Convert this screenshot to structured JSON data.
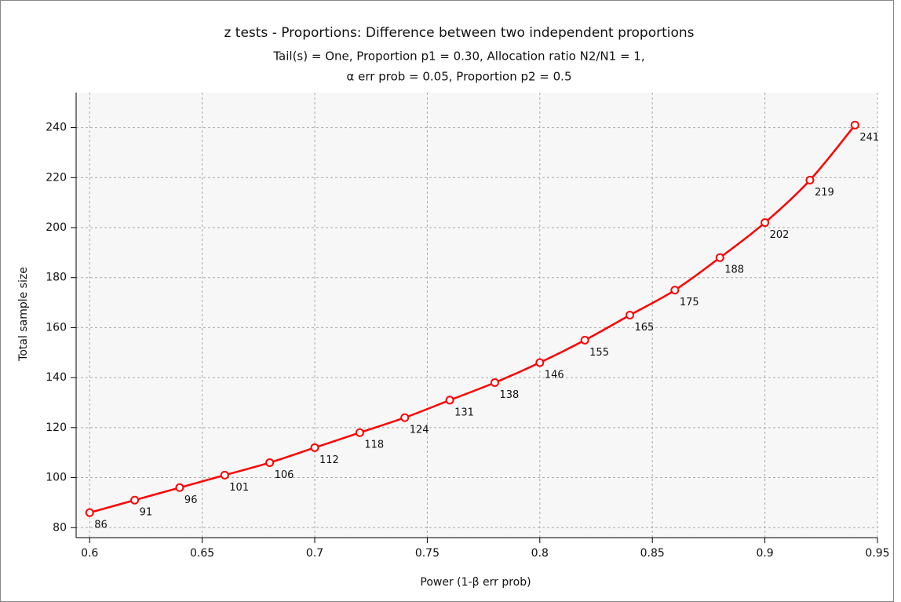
{
  "chart_data": {
    "type": "line",
    "title": "z tests - Proportions: Difference between two independent proportions",
    "subtitle": [
      "Tail(s) = One, Proportion p1 = 0.30, Allocation ratio N2/N1 = 1,",
      "α err prob = 0.05, Proportion p2 = 0.5"
    ],
    "x_label": "Power (1-β err prob)",
    "y_label": "Total sample size",
    "x": [
      0.6,
      0.62,
      0.64,
      0.66,
      0.68,
      0.7,
      0.72,
      0.74,
      0.76,
      0.78,
      0.8,
      0.82,
      0.84,
      0.86,
      0.88,
      0.9,
      0.92,
      0.94
    ],
    "series": [
      {
        "color": "#ff0000",
        "values": [
          86,
          91,
          96,
          101,
          106,
          112,
          118,
          124,
          131,
          138,
          146,
          155,
          165,
          175,
          188,
          202,
          219,
          241
        ]
      }
    ],
    "xlim": [
      0.594,
      0.95
    ],
    "ylim": [
      76,
      254
    ],
    "xticks": [
      0.6,
      0.65,
      0.7,
      0.75,
      0.8,
      0.85,
      0.9,
      0.95
    ],
    "yticks": [
      80,
      100,
      120,
      140,
      160,
      180,
      200,
      220,
      240
    ],
    "grid": true,
    "data_labels": true
  }
}
